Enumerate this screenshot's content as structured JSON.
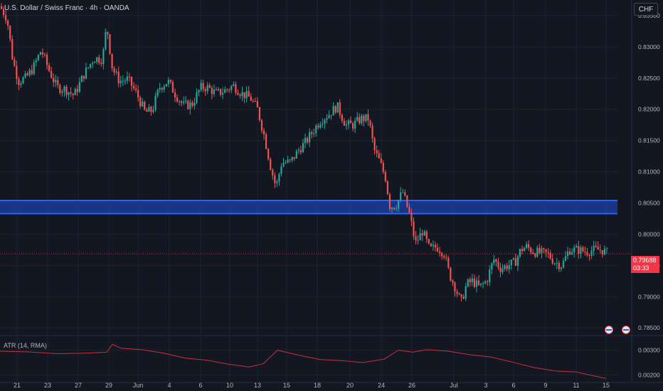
{
  "header": {
    "title": "U.S. Dollar / Swiss Franc · 4h · OANDA",
    "currency_button": "CHF"
  },
  "atr": {
    "label": "ATR (14, RMA)"
  },
  "last_price": {
    "value": "0.79688",
    "countdown": "03:33"
  },
  "colors": {
    "background": "#131722",
    "up": "#26a69a",
    "down": "#ef5350",
    "zone": "#1e3fa8",
    "zone_border": "#2962ff",
    "atr_line": "#c62f3b",
    "grid": "#1e222d"
  },
  "chart_data": [
    {
      "type": "candlestick",
      "x_ticks": [
        "21",
        "23",
        "27",
        "29",
        "Jun",
        "4",
        "6",
        "10",
        "13",
        "15",
        "18",
        "20",
        "24",
        "26",
        "Jul",
        "3",
        "6",
        "9",
        "11",
        "15"
      ],
      "y_ticks": [
        "0.83500",
        "0.83000",
        "0.82500",
        "0.82000",
        "0.81500",
        "0.81000",
        "0.80500",
        "0.80000",
        "0.79500",
        "0.79000",
        "0.78500"
      ],
      "ylim": [
        0.784,
        0.8375
      ],
      "zone": {
        "from": 0.8033,
        "to": 0.8054
      },
      "last_price": 0.79688,
      "path": [
        [
          0,
          0.8365
        ],
        [
          10,
          0.8345
        ],
        [
          18,
          0.8278
        ],
        [
          26,
          0.8245
        ],
        [
          36,
          0.825
        ],
        [
          46,
          0.8265
        ],
        [
          58,
          0.8295
        ],
        [
          68,
          0.8265
        ],
        [
          80,
          0.8235
        ],
        [
          92,
          0.8232
        ],
        [
          104,
          0.8222
        ],
        [
          118,
          0.8256
        ],
        [
          132,
          0.8282
        ],
        [
          144,
          0.828
        ],
        [
          150,
          0.8335
        ],
        [
          158,
          0.8265
        ],
        [
          168,
          0.8245
        ],
        [
          180,
          0.8248
        ],
        [
          192,
          0.8225
        ],
        [
          204,
          0.8195
        ],
        [
          214,
          0.8198
        ],
        [
          224,
          0.8235
        ],
        [
          236,
          0.8245
        ],
        [
          246,
          0.8225
        ],
        [
          258,
          0.8206
        ],
        [
          270,
          0.8208
        ],
        [
          282,
          0.8235
        ],
        [
          292,
          0.8235
        ],
        [
          304,
          0.8225
        ],
        [
          316,
          0.823
        ],
        [
          328,
          0.8238
        ],
        [
          340,
          0.8225
        ],
        [
          352,
          0.8218
        ],
        [
          362,
          0.82
        ],
        [
          372,
          0.8155
        ],
        [
          380,
          0.811
        ],
        [
          388,
          0.8075
        ],
        [
          396,
          0.8115
        ],
        [
          408,
          0.8115
        ],
        [
          420,
          0.8135
        ],
        [
          430,
          0.8148
        ],
        [
          440,
          0.8165
        ],
        [
          450,
          0.8182
        ],
        [
          462,
          0.8192
        ],
        [
          474,
          0.8205
        ],
        [
          486,
          0.8175
        ],
        [
          496,
          0.8175
        ],
        [
          508,
          0.8185
        ],
        [
          518,
          0.8185
        ],
        [
          526,
          0.8135
        ],
        [
          534,
          0.8115
        ],
        [
          542,
          0.809
        ],
        [
          548,
          0.8045
        ],
        [
          556,
          0.8045
        ],
        [
          566,
          0.8068
        ],
        [
          576,
          0.803
        ],
        [
          584,
          0.7985
        ],
        [
          594,
          0.8005
        ],
        [
          604,
          0.7975
        ],
        [
          614,
          0.798
        ],
        [
          624,
          0.797
        ],
        [
          632,
          0.7935
        ],
        [
          640,
          0.7915
        ],
        [
          648,
          0.789
        ],
        [
          656,
          0.792
        ],
        [
          664,
          0.7925
        ],
        [
          674,
          0.7915
        ],
        [
          684,
          0.7925
        ],
        [
          694,
          0.796
        ],
        [
          704,
          0.7945
        ],
        [
          714,
          0.795
        ],
        [
          724,
          0.7955
        ],
        [
          732,
          0.7975
        ],
        [
          740,
          0.798
        ],
        [
          750,
          0.7972
        ],
        [
          760,
          0.797
        ],
        [
          770,
          0.7968
        ],
        [
          780,
          0.7955
        ],
        [
          790,
          0.795
        ],
        [
          800,
          0.7975
        ],
        [
          812,
          0.7975
        ],
        [
          824,
          0.7972
        ],
        [
          836,
          0.7975
        ],
        [
          846,
          0.7975
        ],
        [
          854,
          0.7969
        ]
      ]
    },
    {
      "type": "line",
      "name": "ATR (14, RMA)",
      "y_ticks": [
        "0.00300",
        "0.00200"
      ],
      "ylim": [
        0.00175,
        0.00345
      ],
      "points": [
        [
          0,
          0.00296
        ],
        [
          40,
          0.00293
        ],
        [
          80,
          0.00286
        ],
        [
          120,
          0.00288
        ],
        [
          150,
          0.00292
        ],
        [
          158,
          0.00324
        ],
        [
          170,
          0.00308
        ],
        [
          200,
          0.00302
        ],
        [
          230,
          0.00288
        ],
        [
          260,
          0.00268
        ],
        [
          290,
          0.0026
        ],
        [
          320,
          0.00244
        ],
        [
          350,
          0.00232
        ],
        [
          370,
          0.00245
        ],
        [
          390,
          0.003
        ],
        [
          420,
          0.0028
        ],
        [
          450,
          0.00262
        ],
        [
          480,
          0.00258
        ],
        [
          510,
          0.0025
        ],
        [
          540,
          0.00264
        ],
        [
          560,
          0.003
        ],
        [
          580,
          0.00292
        ],
        [
          600,
          0.00302
        ],
        [
          630,
          0.00296
        ],
        [
          660,
          0.00282
        ],
        [
          690,
          0.00272
        ],
        [
          720,
          0.00252
        ],
        [
          750,
          0.0023
        ],
        [
          780,
          0.00216
        ],
        [
          810,
          0.00212
        ],
        [
          830,
          0.00199
        ],
        [
          852,
          0.00186
        ]
      ]
    }
  ]
}
